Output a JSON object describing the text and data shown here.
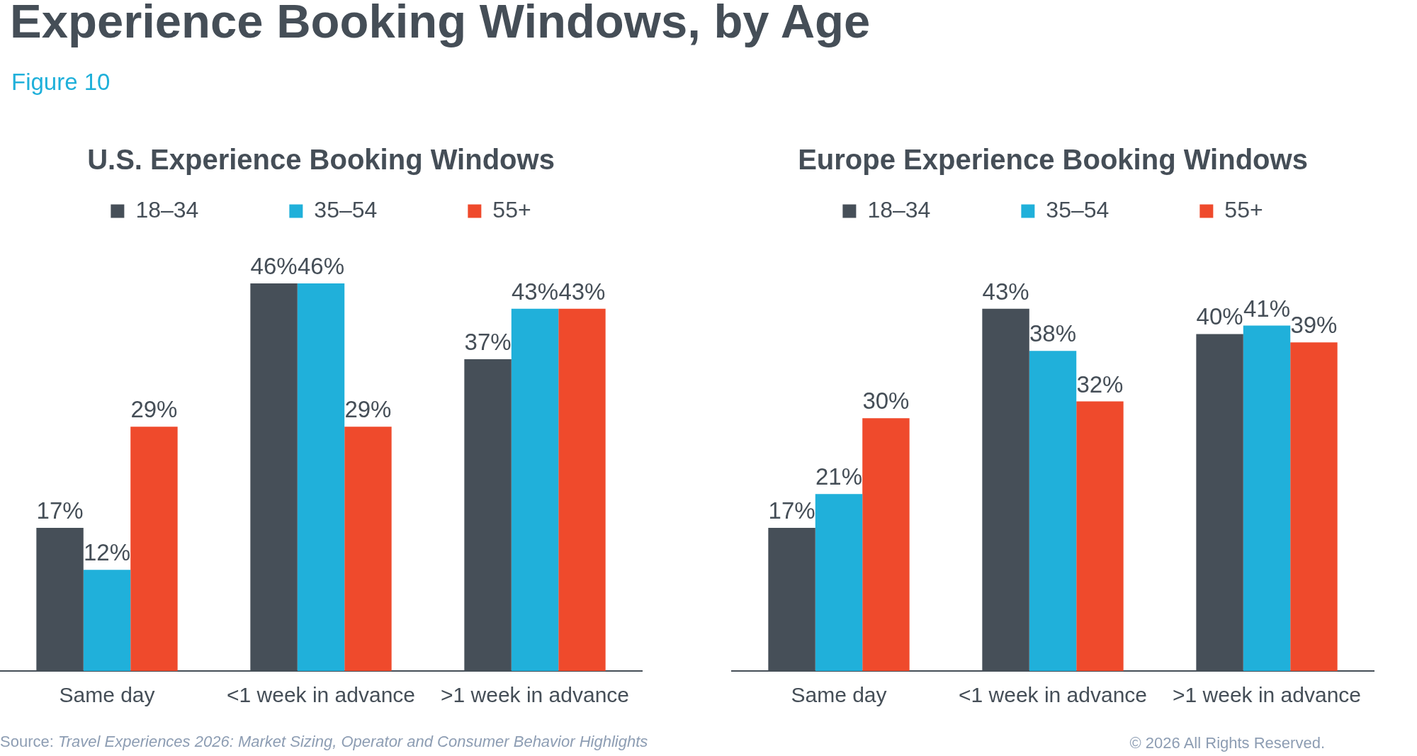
{
  "chart_data": [
    {
      "type": "other",
      "title": "Experience Booking Windows, by Age",
      "subtitle": "Figure 10",
      "annotations": [
        "Source: Travel Experiences 2026: Market Sizing, Operator and Consumer Behavior Highlights",
        "© 2026 All Rights Reserved."
      ]
    },
    {
      "type": "bar",
      "title": "U.S. Experience Booking Windows",
      "categories": [
        "Same day",
        "<1 week in advance",
        ">1 week in advance"
      ],
      "series": [
        {
          "name": "18–34",
          "color": "#464f58",
          "values": [
            17,
            46,
            37
          ],
          "value_labels": [
            "17%",
            "46%",
            "37%"
          ]
        },
        {
          "name": "35–54",
          "color": "#20b0da",
          "values": [
            12,
            46,
            43
          ],
          "value_labels": [
            "12%",
            "46%",
            "43%"
          ]
        },
        {
          "name": "55+",
          "color": "#ef4a2c",
          "values": [
            29,
            29,
            43
          ],
          "value_labels": [
            "29%",
            "29%",
            "43%"
          ]
        }
      ],
      "legend": "top"
    },
    {
      "type": "bar",
      "title": "Europe Experience Booking Windows",
      "categories": [
        "Same day",
        "<1 week in advance",
        ">1 week in advance"
      ],
      "series": [
        {
          "name": "18–34",
          "color": "#464f58",
          "values": [
            17,
            43,
            40
          ],
          "value_labels": [
            "17%",
            "43%",
            "40%"
          ]
        },
        {
          "name": "35–54",
          "color": "#20b0da",
          "values": [
            21,
            38,
            41
          ],
          "value_labels": [
            "21%",
            "38%",
            "41%"
          ]
        },
        {
          "name": "55+",
          "color": "#ef4a2c",
          "values": [
            30,
            32,
            39
          ],
          "value_labels": [
            "30%",
            "32%",
            "39%"
          ]
        }
      ],
      "legend": "top"
    }
  ]
}
